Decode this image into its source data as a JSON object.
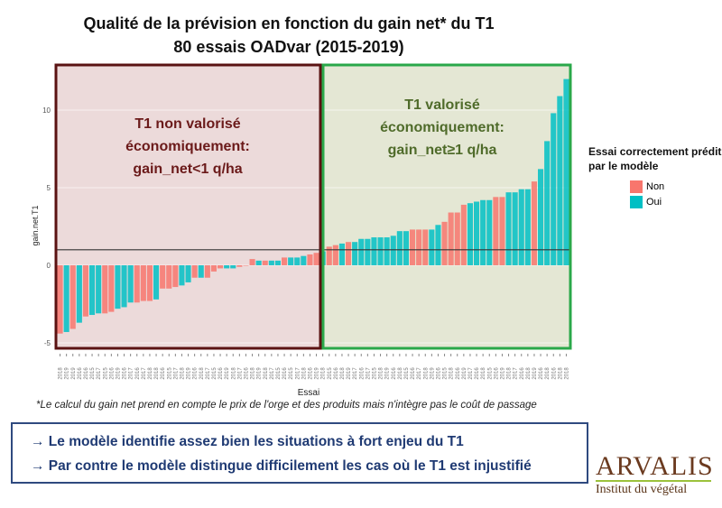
{
  "title_line1": "Qualité de la prévision en fonction du gain net* du T1",
  "title_line2": "80 essais OADvar (2015-2019)",
  "zone_left": {
    "line1": "T1 non valorisé",
    "line2": "économiquement:",
    "line3": "gain_net<1 q/ha"
  },
  "zone_right": {
    "line1": "T1 valorisé",
    "line2": "économiquement:",
    "line3": "gain_net≥1 q/ha"
  },
  "footnote": "*Le calcul du gain net prend en compte le prix de l'orge et des produits mais n'intègre pas le coût de passage",
  "conclusions": [
    "→  Le modèle identifie assez bien les situations à fort enjeu du T1",
    "→  Par contre le modèle distingue difficilement les cas où le T1 est injustifié"
  ],
  "logo": {
    "name": "ARVALIS",
    "tagline": "Institut du végétal"
  },
  "chart_data": {
    "type": "bar",
    "xlabel": "Essai",
    "ylabel": "gain.net.T1",
    "yticks": [
      -5,
      0,
      5,
      10
    ],
    "ylim": [
      -5.5,
      12.5
    ],
    "reference_line": 1,
    "legend": {
      "title": "Essai correctement prédit par le modèle",
      "entries": [
        {
          "name": "Non",
          "color": "#F8766D"
        },
        {
          "name": "Oui",
          "color": "#00BFC4"
        }
      ],
      "placement": "right"
    },
    "categories": [
      "2018",
      "2019",
      "2019",
      "2016",
      "2016",
      "2015",
      "2017",
      "2015",
      "2016",
      "2019",
      "2016",
      "2017",
      "2016",
      "2017",
      "2018",
      "2018",
      "2016",
      "2015",
      "2017",
      "2018",
      "2019",
      "2016",
      "2018",
      "2017",
      "2015",
      "2016",
      "2019",
      "2018",
      "2017",
      "2016",
      "2018",
      "2019",
      "2018",
      "2017",
      "2015",
      "2016",
      "2015",
      "2017",
      "2018",
      "2016",
      "2019",
      "2018",
      "2015",
      "2016",
      "2018",
      "2019",
      "2017",
      "2016",
      "2017",
      "2015",
      "2018",
      "2019",
      "2016",
      "2018",
      "2015",
      "2016",
      "2017",
      "2018",
      "2019",
      "2016",
      "2015",
      "2018",
      "2016",
      "2019",
      "2017",
      "2016",
      "2018",
      "2015",
      "2016",
      "2019",
      "2018",
      "2017",
      "2016",
      "2018",
      "2019",
      "2016",
      "2018",
      "2016",
      "2018",
      "2018"
    ],
    "values": [
      -4.4,
      -4.3,
      -4.1,
      -3.7,
      -3.3,
      -3.2,
      -3.1,
      -3.1,
      -3.0,
      -2.8,
      -2.7,
      -2.4,
      -2.4,
      -2.3,
      -2.3,
      -2.2,
      -1.5,
      -1.5,
      -1.4,
      -1.3,
      -1.1,
      -0.8,
      -0.8,
      -0.8,
      -0.4,
      -0.2,
      -0.2,
      -0.2,
      -0.1,
      0.0,
      0.4,
      0.3,
      0.3,
      0.3,
      0.3,
      0.5,
      0.5,
      0.5,
      0.6,
      0.7,
      0.8,
      0.9,
      1.2,
      1.3,
      1.4,
      1.5,
      1.5,
      1.7,
      1.7,
      1.8,
      1.8,
      1.8,
      1.9,
      2.2,
      2.2,
      2.3,
      2.3,
      2.3,
      2.3,
      2.6,
      2.8,
      3.4,
      3.4,
      3.9,
      4.0,
      4.1,
      4.2,
      4.2,
      4.4,
      4.4,
      4.7,
      4.7,
      4.9,
      4.9,
      5.4,
      6.2,
      8.0,
      9.8,
      10.9,
      12.0
    ],
    "correct": [
      "Non",
      "Oui",
      "Non",
      "Oui",
      "Non",
      "Oui",
      "Oui",
      "Non",
      "Non",
      "Oui",
      "Oui",
      "Oui",
      "Non",
      "Non",
      "Non",
      "Oui",
      "Non",
      "Non",
      "Non",
      "Oui",
      "Oui",
      "Non",
      "Oui",
      "Non",
      "Non",
      "Non",
      "Oui",
      "Oui",
      "Non",
      "Non",
      "Non",
      "Oui",
      "Non",
      "Oui",
      "Oui",
      "Non",
      "Oui",
      "Oui",
      "Oui",
      "Non",
      "Non",
      "Oui",
      "Non",
      "Non",
      "Oui",
      "Non",
      "Oui",
      "Oui",
      "Oui",
      "Oui",
      "Oui",
      "Oui",
      "Oui",
      "Oui",
      "Oui",
      "Non",
      "Non",
      "Non",
      "Oui",
      "Oui",
      "Non",
      "Non",
      "Non",
      "Non",
      "Oui",
      "Oui",
      "Oui",
      "Oui",
      "Non",
      "Non",
      "Oui",
      "Oui",
      "Oui",
      "Oui",
      "Non",
      "Oui",
      "Oui",
      "Oui",
      "Oui",
      "Oui"
    ]
  }
}
